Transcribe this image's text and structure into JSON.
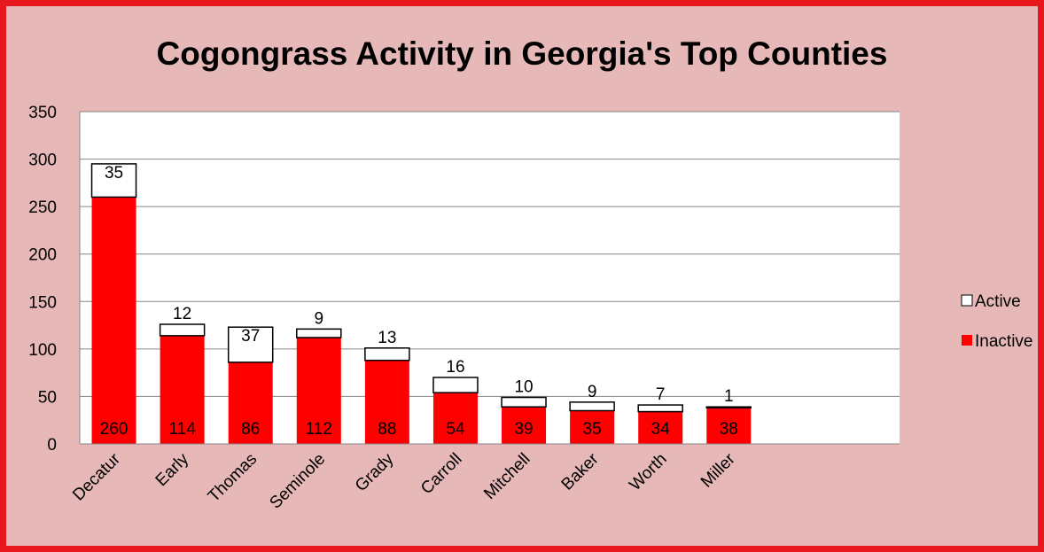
{
  "chart_data": {
    "type": "bar",
    "stacked": true,
    "title": "Cogongrass Activity in Georgia's Top Counties",
    "categories": [
      "Decatur",
      "Early",
      "Thomas",
      "Seminole",
      "Grady",
      "Carroll",
      "Mitchell",
      "Baker",
      "Worth",
      "Miller"
    ],
    "series": [
      {
        "name": "Inactive",
        "values": [
          260,
          114,
          86,
          112,
          88,
          54,
          39,
          35,
          34,
          38
        ],
        "color": "#ff0000"
      },
      {
        "name": "Active",
        "values": [
          35,
          12,
          37,
          9,
          13,
          16,
          10,
          9,
          7,
          1
        ],
        "color": "#ffffff"
      }
    ],
    "ylim": [
      0,
      350
    ],
    "yticks": [
      0,
      50,
      100,
      150,
      200,
      250,
      300,
      350
    ],
    "grid": true,
    "legend": "right",
    "xlabel": "",
    "ylabel": ""
  },
  "colors": {
    "frame_border": "#e8161d",
    "background": "#e6b8b7",
    "plot_area": "#ffffff",
    "gridline": "#868686"
  }
}
